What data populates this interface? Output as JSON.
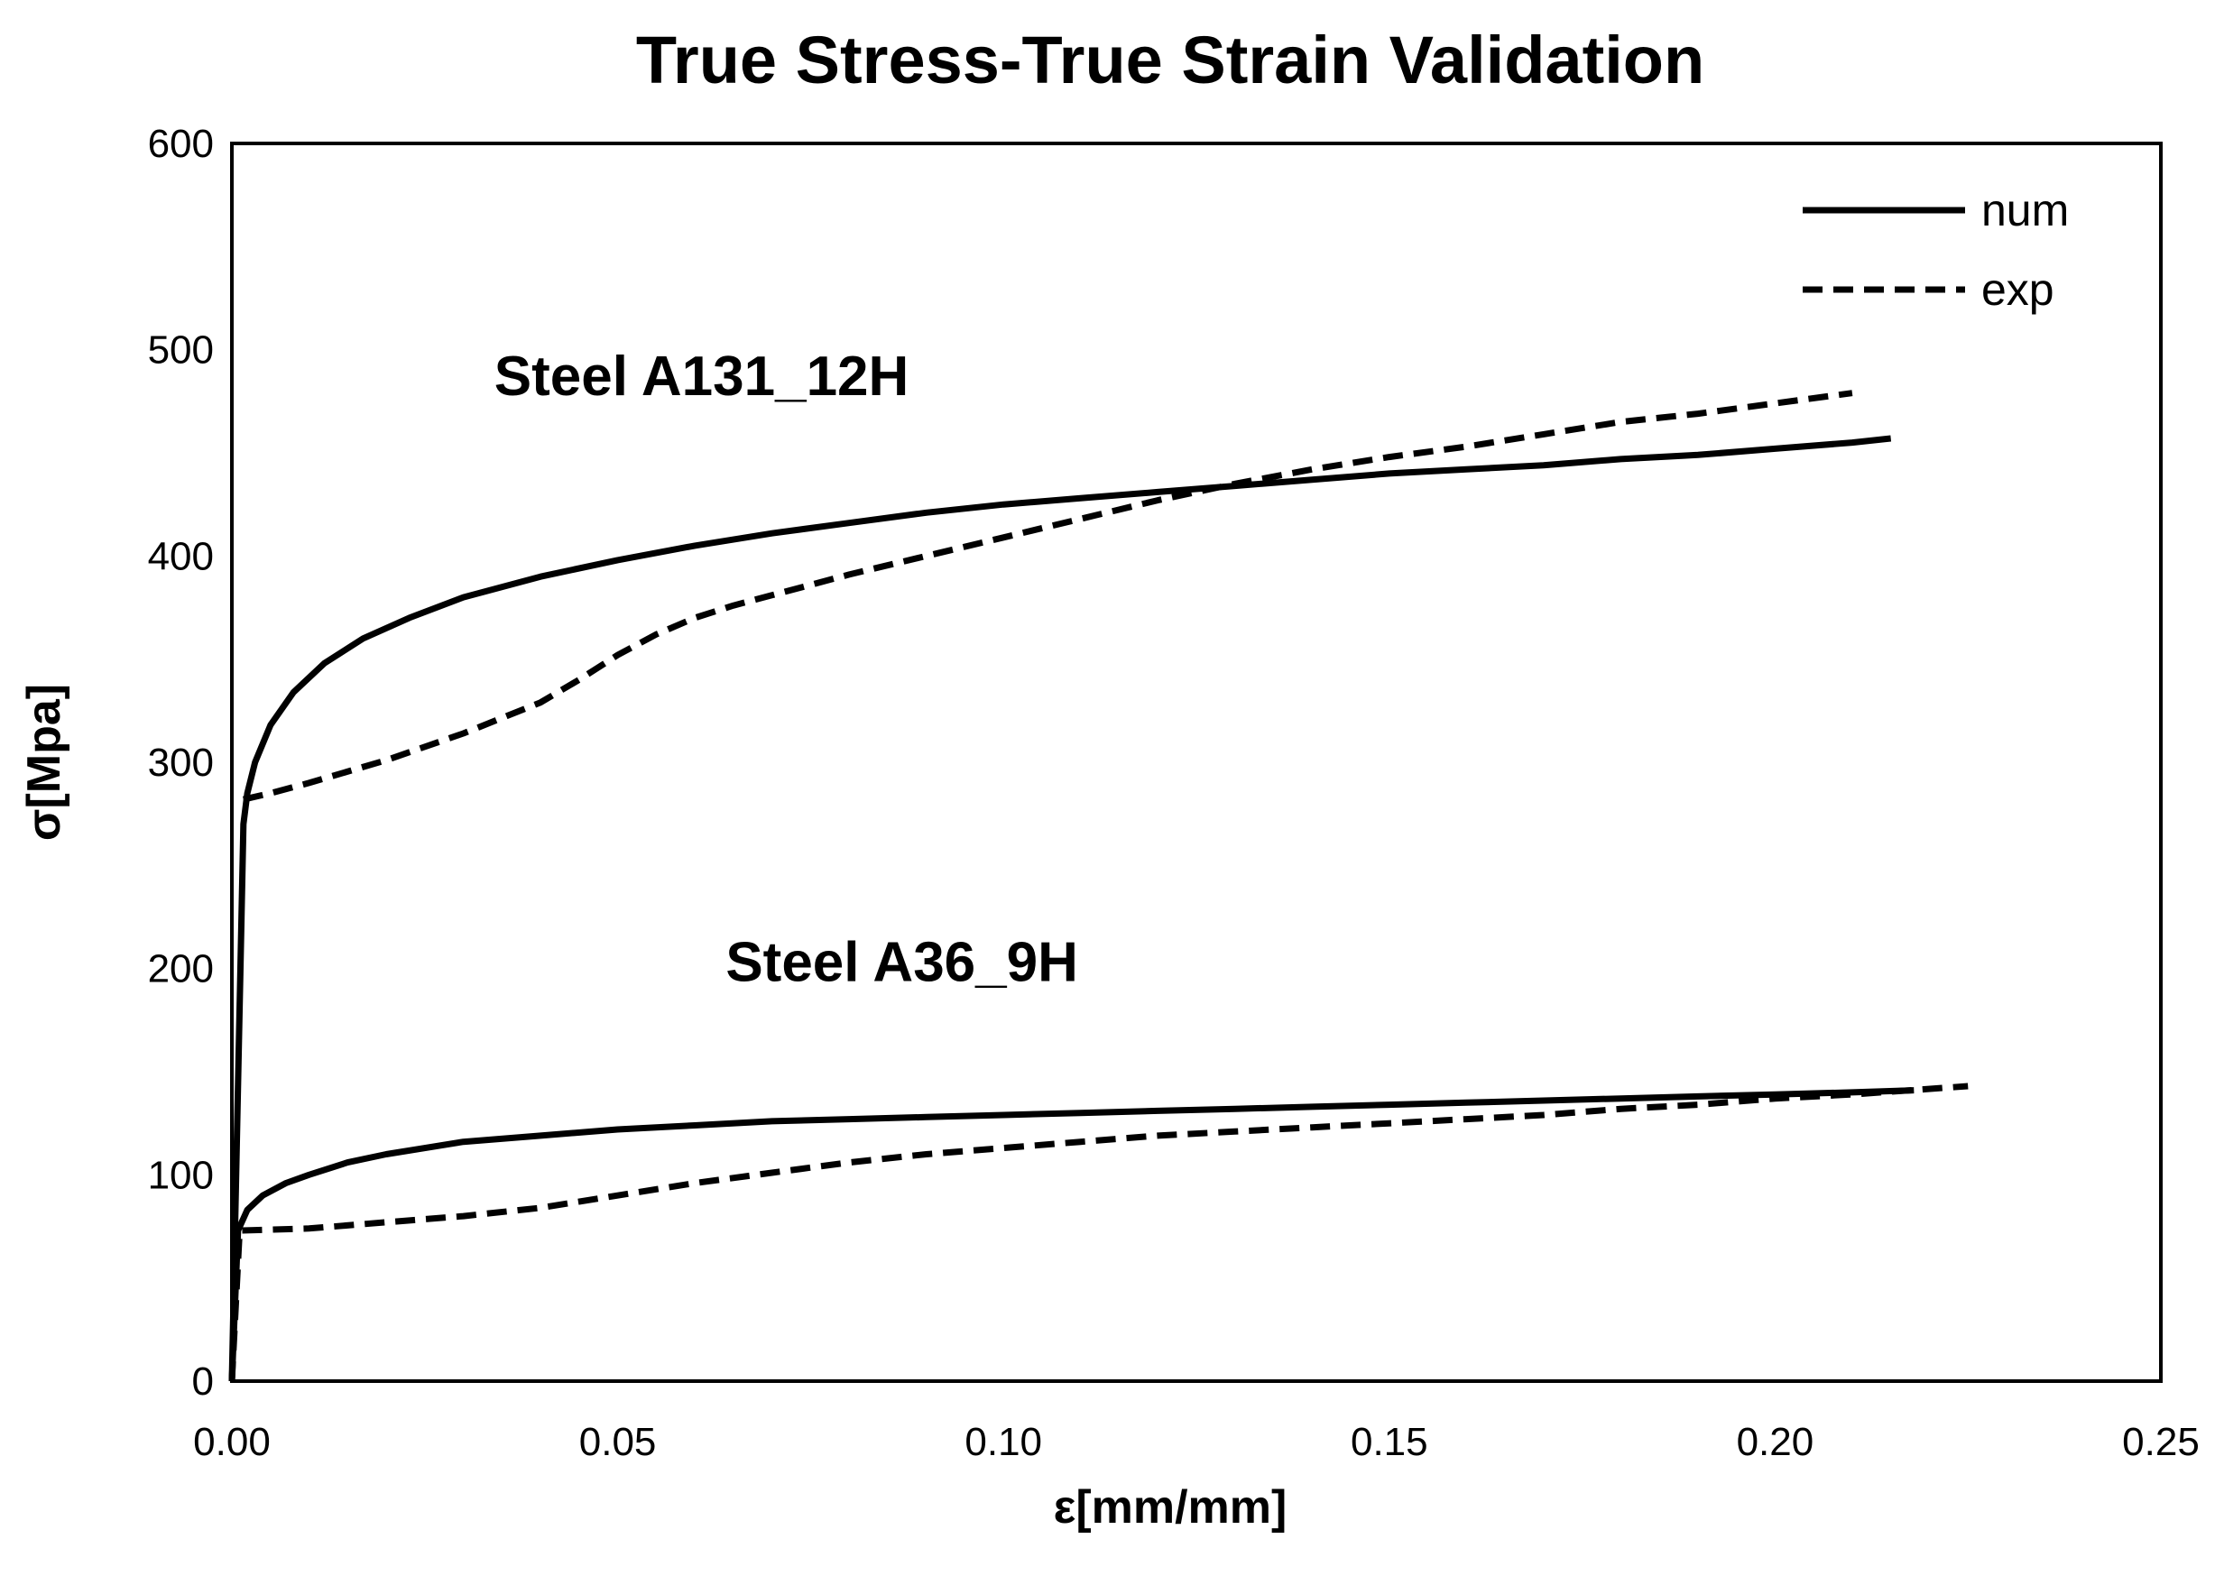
{
  "chart_data": {
    "type": "line",
    "title": "True Stress-True Strain Validation",
    "xlabel": "ε[mm/mm]",
    "ylabel": "σ[Mpa]",
    "xlim": [
      0,
      0.25
    ],
    "ylim": [
      0,
      600
    ],
    "xticks": [
      "0.00",
      "0.05",
      "0.10",
      "0.15",
      "0.20",
      "0.25"
    ],
    "yticks": [
      "0",
      "100",
      "200",
      "300",
      "400",
      "500",
      "600"
    ],
    "grid": false,
    "legend": {
      "position": "top-right",
      "entries": [
        "num",
        "exp"
      ]
    },
    "annotations": [
      {
        "text": "Steel A131_12H",
        "x": 0.034,
        "y": 478
      },
      {
        "text": "Steel A36_9H",
        "x": 0.064,
        "y": 194
      }
    ],
    "series": [
      {
        "name": "num",
        "group": "Steel A131_12H",
        "style": "solid",
        "x": [
          0,
          0.0015,
          0.002,
          0.003,
          0.005,
          0.008,
          0.012,
          0.017,
          0.023,
          0.03,
          0.04,
          0.05,
          0.06,
          0.07,
          0.08,
          0.09,
          0.1,
          0.11,
          0.12,
          0.13,
          0.14,
          0.15,
          0.16,
          0.17,
          0.18,
          0.19,
          0.2,
          0.21,
          0.215
        ],
        "y": [
          0,
          270,
          285,
          300,
          318,
          334,
          348,
          360,
          370,
          380,
          390,
          398,
          405,
          411,
          416,
          421,
          425,
          428,
          431,
          434,
          437,
          440,
          442,
          444,
          447,
          449,
          452,
          455,
          457
        ]
      },
      {
        "name": "exp",
        "group": "Steel A131_12H",
        "style": "dashed",
        "x": [
          0.0015,
          0.005,
          0.01,
          0.02,
          0.03,
          0.04,
          0.045,
          0.05,
          0.055,
          0.06,
          0.065,
          0.07,
          0.08,
          0.09,
          0.1,
          0.11,
          0.12,
          0.13,
          0.14,
          0.15,
          0.16,
          0.17,
          0.18,
          0.19,
          0.2,
          0.21
        ],
        "y": [
          282,
          285,
          290,
          301,
          314,
          329,
          340,
          352,
          362,
          370,
          376,
          381,
          391,
          400,
          409,
          418,
          427,
          435,
          442,
          448,
          453,
          459,
          465,
          469,
          474,
          479
        ]
      },
      {
        "name": "num",
        "group": "Steel A36_9H",
        "style": "solid",
        "x": [
          0,
          0.0008,
          0.002,
          0.004,
          0.007,
          0.01,
          0.015,
          0.02,
          0.03,
          0.04,
          0.05,
          0.06,
          0.07,
          0.08,
          0.09,
          0.1,
          0.11,
          0.12,
          0.13,
          0.14,
          0.15,
          0.16,
          0.17,
          0.18,
          0.19,
          0.2,
          0.21,
          0.218
        ],
        "y": [
          0,
          73,
          83,
          90,
          96,
          100,
          106,
          110,
          116,
          119,
          122,
          124,
          126,
          127,
          128,
          129,
          130,
          131,
          132,
          133,
          134,
          135,
          136,
          137,
          138,
          139,
          140,
          141
        ]
      },
      {
        "name": "exp",
        "group": "Steel A36_9H",
        "style": "dashed",
        "x": [
          0,
          0.001,
          0.01,
          0.02,
          0.03,
          0.04,
          0.05,
          0.06,
          0.07,
          0.08,
          0.09,
          0.1,
          0.11,
          0.12,
          0.13,
          0.14,
          0.15,
          0.16,
          0.17,
          0.18,
          0.19,
          0.2,
          0.21,
          0.225
        ],
        "y": [
          0,
          73,
          74,
          77,
          80,
          84,
          90,
          96,
          101,
          106,
          110,
          113,
          116,
          119,
          121,
          123,
          125,
          127,
          129,
          132,
          134,
          137,
          139,
          143
        ]
      }
    ]
  }
}
